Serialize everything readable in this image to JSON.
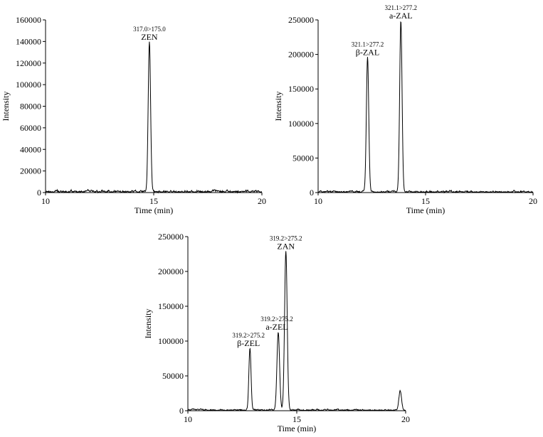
{
  "chart_data": [
    {
      "type": "line",
      "title": "",
      "xlabel": "Time (min)",
      "ylabel": "Intensity",
      "xlim": [
        10,
        20
      ],
      "ylim": [
        0,
        160000
      ],
      "xticks": [
        "10",
        "15",
        "20"
      ],
      "yticks": [
        "0",
        "20000",
        "40000",
        "60000",
        "80000",
        "100000",
        "120000",
        "140000",
        "160000"
      ],
      "grid": false,
      "peaks": [
        {
          "compound": "ZEN",
          "transition": "317.0>175.0",
          "rt": 14.8,
          "height": 139000,
          "width": 0.055
        }
      ],
      "baseline_noise": 2500,
      "seed": 11
    },
    {
      "type": "line",
      "title": "",
      "xlabel": "Time (min)",
      "ylabel": "Intensity",
      "xlim": [
        10,
        20
      ],
      "ylim": [
        0,
        250000
      ],
      "xticks": [
        "10",
        "15",
        "20"
      ],
      "yticks": [
        "0",
        "50000",
        "100000",
        "150000",
        "200000",
        "250000"
      ],
      "grid": false,
      "peaks": [
        {
          "compound": "β-ZAL",
          "transition": "321.1>277.2",
          "rt": 12.3,
          "height": 195000,
          "width": 0.055
        },
        {
          "compound": "a-ZAL",
          "transition": "321.1>277.2",
          "rt": 13.85,
          "height": 248000,
          "width": 0.055
        }
      ],
      "baseline_noise": 3000,
      "seed": 23
    },
    {
      "type": "line",
      "title": "",
      "xlabel": "Time (min)",
      "ylabel": "Intensity",
      "xlim": [
        10,
        20
      ],
      "ylim": [
        0,
        250000
      ],
      "xticks": [
        "10",
        "15",
        "20"
      ],
      "yticks": [
        "0",
        "50000",
        "100000",
        "150000",
        "200000",
        "250000"
      ],
      "grid": false,
      "peaks": [
        {
          "compound": "β-ZEL",
          "transition": "319.2>275.2",
          "rt": 12.85,
          "height": 89000,
          "width": 0.05
        },
        {
          "compound": "a-ZEL",
          "transition": "319.2>275.2",
          "rt": 14.15,
          "height": 112000,
          "width": 0.06
        },
        {
          "compound": "ZAN",
          "transition": "319.2>275.2",
          "rt": 14.5,
          "height": 228000,
          "width": 0.06
        },
        {
          "compound": "",
          "transition": "",
          "rt": 19.75,
          "height": 28000,
          "width": 0.06
        }
      ],
      "baseline_noise": 2500,
      "seed": 37
    }
  ]
}
